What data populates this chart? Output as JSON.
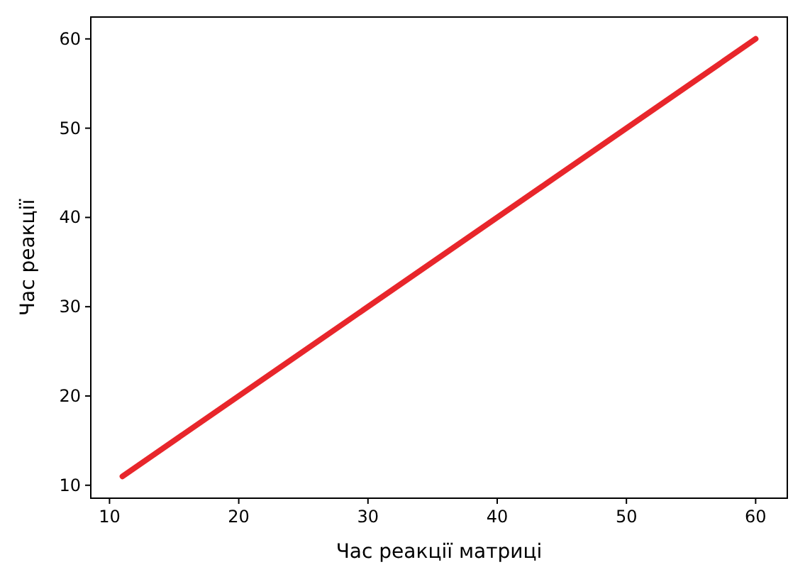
{
  "chart_data": {
    "type": "line",
    "xlabel": "Час реакції матриці",
    "ylabel": "Час реакції",
    "x": [
      11,
      60
    ],
    "series": [
      {
        "color": "#e8262b",
        "values": [
          11,
          60
        ]
      }
    ],
    "xlim": [
      8.55,
      62.45
    ],
    "ylim": [
      8.55,
      62.45
    ],
    "xticks": [
      10,
      20,
      30,
      40,
      50,
      60
    ],
    "yticks": [
      10,
      20,
      30,
      40,
      50,
      60
    ],
    "grid": false,
    "marker": "none",
    "line_style": "solid"
  }
}
